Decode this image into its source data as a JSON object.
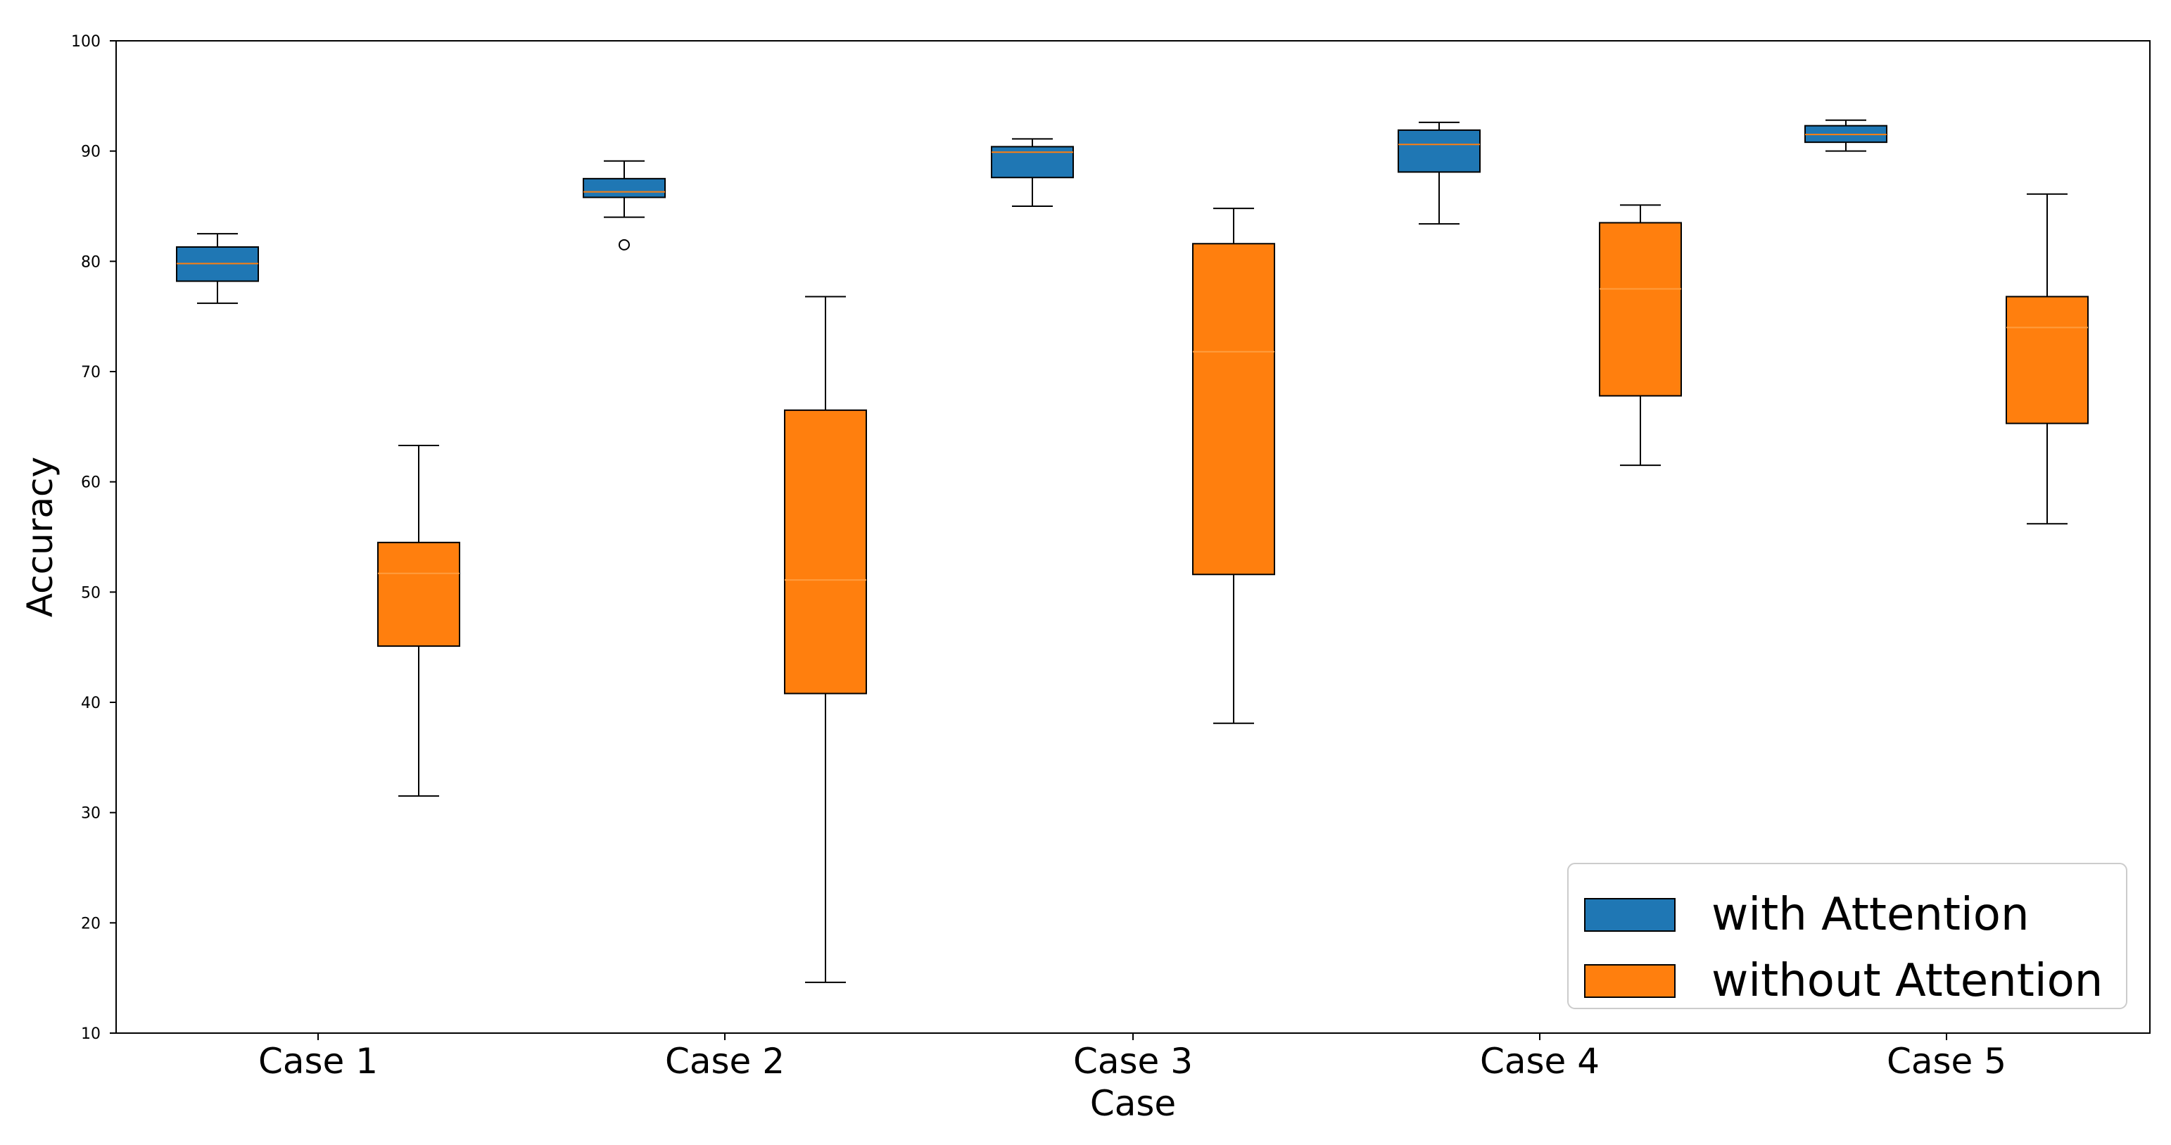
{
  "chart_data": {
    "type": "boxplot",
    "title": "",
    "xlabel": "Case",
    "ylabel": "Accuracy",
    "ylim": [
      10,
      100
    ],
    "yticks": [
      "10",
      "20",
      "30",
      "40",
      "50",
      "60",
      "70",
      "80",
      "90",
      "100"
    ],
    "grid": false,
    "legend_position": "bottom-right",
    "categories": [
      "Case 1",
      "Case 2",
      "Case 3",
      "Case 4",
      "Case 5"
    ],
    "series": [
      {
        "name": "with Attention",
        "color": "#1f77b4",
        "median_color": "#ff7f0e",
        "boxes": [
          {
            "whisker_low": 76.2,
            "q1": 78.2,
            "median": 79.8,
            "q3": 81.3,
            "whisker_high": 82.5,
            "outliers": []
          },
          {
            "whisker_low": 84.0,
            "q1": 85.8,
            "median": 86.3,
            "q3": 87.5,
            "whisker_high": 89.1,
            "outliers": [
              81.5
            ]
          },
          {
            "whisker_low": 85.0,
            "q1": 87.6,
            "median": 89.9,
            "q3": 90.4,
            "whisker_high": 91.1,
            "outliers": []
          },
          {
            "whisker_low": 83.4,
            "q1": 88.1,
            "median": 90.6,
            "q3": 91.9,
            "whisker_high": 92.6,
            "outliers": []
          },
          {
            "whisker_low": 90.0,
            "q1": 90.8,
            "median": 91.5,
            "q3": 92.3,
            "whisker_high": 92.8,
            "outliers": []
          }
        ]
      },
      {
        "name": "without Attention",
        "color": "#ff7f0e",
        "median_color": "#ff9d3f",
        "boxes": [
          {
            "whisker_low": 31.5,
            "q1": 45.1,
            "median": 51.7,
            "q3": 54.5,
            "whisker_high": 63.3,
            "outliers": []
          },
          {
            "whisker_low": 14.6,
            "q1": 40.8,
            "median": 51.1,
            "q3": 66.5,
            "whisker_high": 76.8,
            "outliers": []
          },
          {
            "whisker_low": 38.1,
            "q1": 51.6,
            "median": 71.8,
            "q3": 81.6,
            "whisker_high": 84.8,
            "outliers": []
          },
          {
            "whisker_low": 61.5,
            "q1": 67.8,
            "median": 77.5,
            "q3": 83.5,
            "whisker_high": 85.1,
            "outliers": []
          },
          {
            "whisker_low": 56.2,
            "q1": 65.3,
            "median": 74.0,
            "q3": 76.8,
            "whisker_high": 86.1,
            "outliers": []
          }
        ]
      }
    ]
  }
}
